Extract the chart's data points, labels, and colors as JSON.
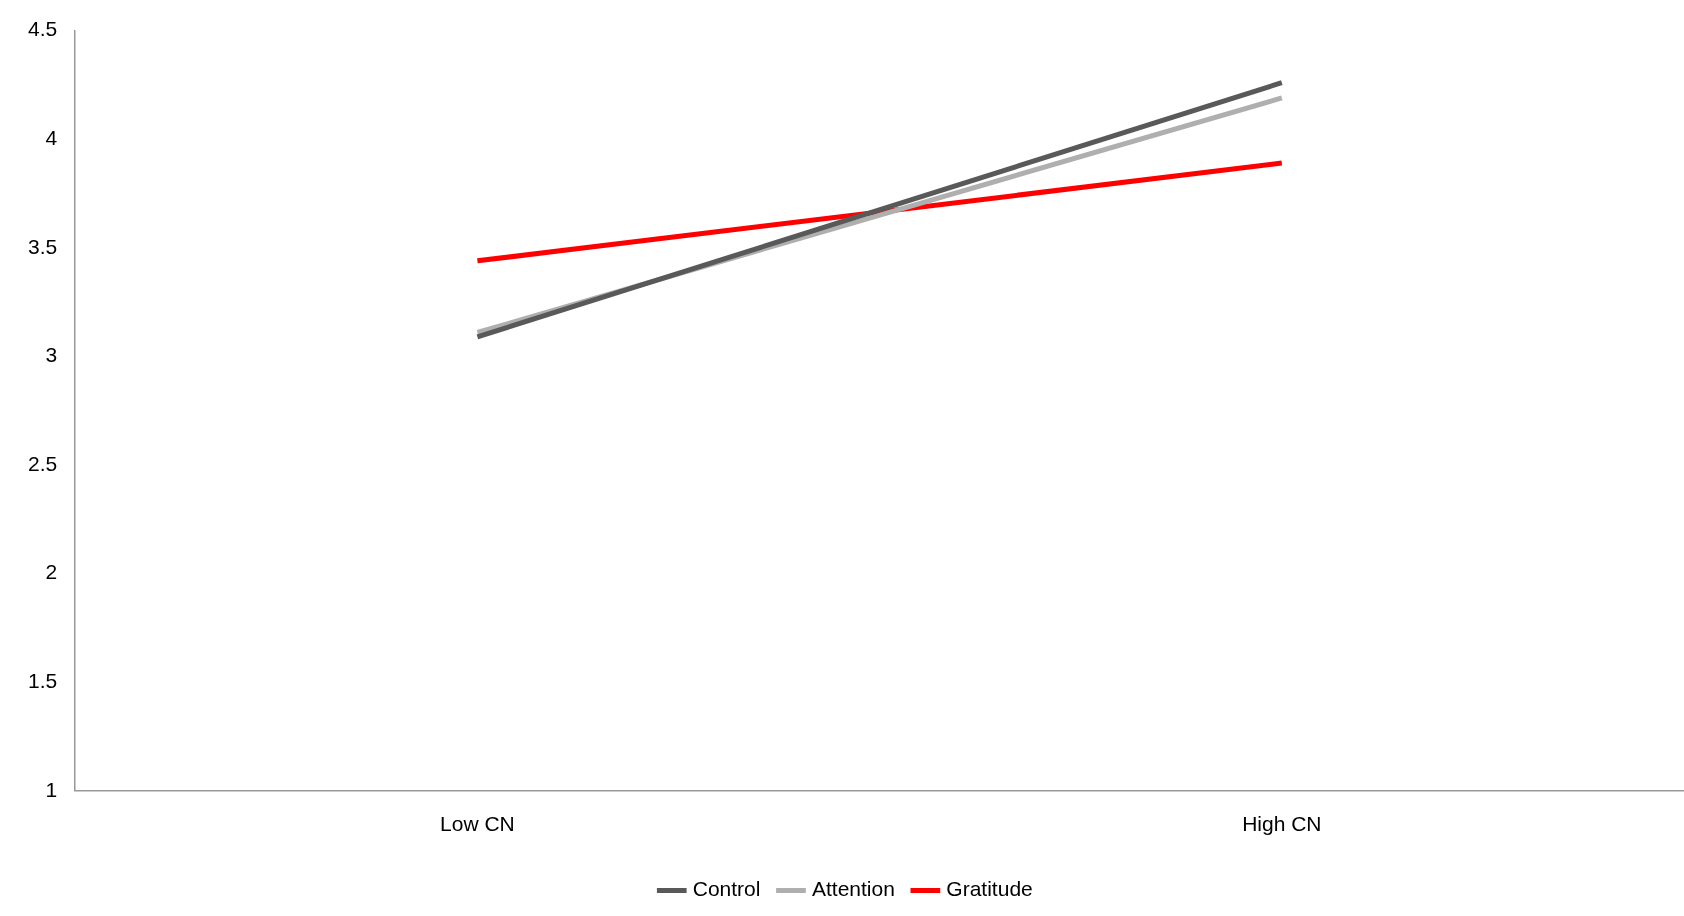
{
  "chart_data": {
    "type": "line",
    "categories": [
      "Low CN",
      "High CN"
    ],
    "series": [
      {
        "name": "Control",
        "color": "#595959",
        "values": [
          3.09,
          4.26
        ]
      },
      {
        "name": "Attention",
        "color": "#afafaf",
        "values": [
          3.11,
          4.19
        ]
      },
      {
        "name": "Gratitude",
        "color": "#ff0000",
        "values": [
          3.44,
          3.89
        ]
      }
    ],
    "ylim": [
      1,
      4.5
    ],
    "yticks": [
      1,
      1.5,
      2,
      2.5,
      3,
      3.5,
      4,
      4.5
    ],
    "grid": false,
    "legend": "bottom",
    "marker": "none",
    "line_style": "solid"
  }
}
